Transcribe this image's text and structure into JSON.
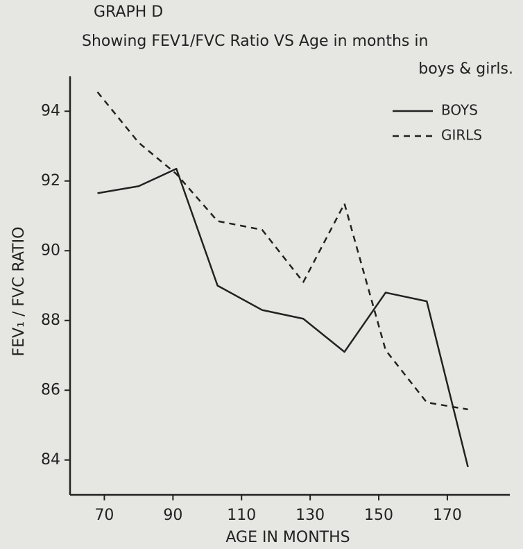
{
  "chart_data": {
    "type": "line",
    "title": "GRAPH D",
    "subtitle": "Showing FEV1/FVC Ratio VS Age in months in",
    "subtitle2": "boys & girls.",
    "x_label": "AGE IN MONTHS",
    "y_label": "FEV₁ / FVC RATIO",
    "x": [
      68,
      80,
      91,
      103,
      116,
      128,
      140,
      152,
      164,
      176
    ],
    "series": [
      {
        "name": "BOYS",
        "color": "#222222",
        "dash": "solid",
        "values": [
          91.65,
          91.85,
          92.35,
          89.0,
          88.3,
          88.05,
          87.1,
          88.8,
          88.55,
          83.8
        ]
      },
      {
        "name": "GIRLS",
        "color": "#222222",
        "dash": "dashed",
        "values": [
          94.55,
          93.1,
          92.2,
          90.85,
          90.6,
          89.1,
          91.35,
          87.15,
          85.65,
          85.45
        ]
      }
    ],
    "xlim": [
      60,
      187
    ],
    "xticks": [
      70,
      90,
      110,
      130,
      150,
      170
    ],
    "ylim": [
      83,
      95
    ],
    "yticks": [
      84,
      86,
      88,
      90,
      92,
      94
    ],
    "grid": false,
    "legend": "upper right"
  }
}
